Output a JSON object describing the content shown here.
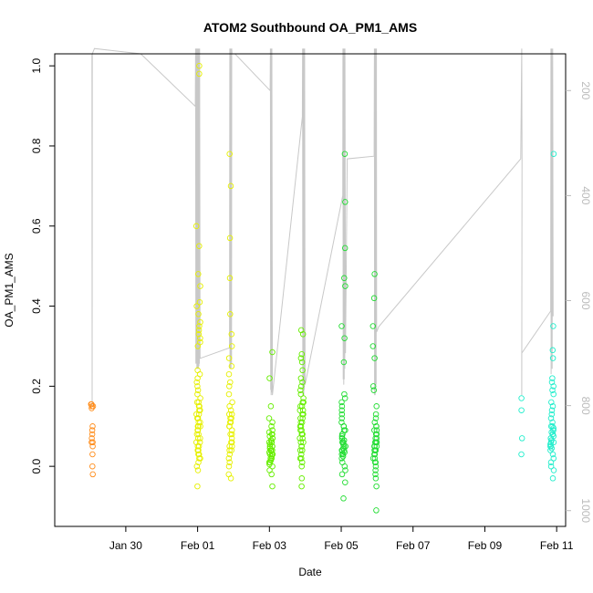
{
  "chart_data": {
    "type": "scatter",
    "title": "ATOM2 Southbound OA_PM1_AMS",
    "xlabel": "Date",
    "ylabel": "OA_PM1_AMS",
    "xlim": [
      "2017-01-28T00:30",
      "2017-02-11T06:00"
    ],
    "ylim": [
      -0.15,
      1.03
    ],
    "x_ticks": [
      {
        "date": "2017-01-30",
        "label": "Jan 30"
      },
      {
        "date": "2017-02-01",
        "label": "Feb 01"
      },
      {
        "date": "2017-02-03",
        "label": "Feb 03"
      },
      {
        "date": "2017-02-05",
        "label": "Feb 05"
      },
      {
        "date": "2017-02-07",
        "label": "Feb 07"
      },
      {
        "date": "2017-02-09",
        "label": "Feb 09"
      },
      {
        "date": "2017-02-11",
        "label": "Feb 11"
      }
    ],
    "y_ticks": [
      "0.0",
      "0.2",
      "0.4",
      "0.6",
      "0.8",
      "1.0"
    ],
    "y_right_ticks": [
      "200",
      "400",
      "600",
      "800",
      "1000"
    ],
    "y_right_reversed": true,
    "y_right_range": [
      1030,
      130
    ],
    "grid": false,
    "series": [
      {
        "color": "#ff8c1a",
        "clusters": [
          {
            "center": "2017-01-29T01:30",
            "spread_hours": 1.4,
            "values": [
              0.155,
              0.15,
              0.145,
              0.155,
              0.1,
              0.09,
              0.07,
              0.06,
              0.05,
              0.08,
              0.03,
              0.0,
              -0.02,
              0.06,
              0.15
            ]
          }
        ]
      },
      {
        "color": "#e6f000",
        "clusters": [
          {
            "center": "2017-02-01T00:30",
            "spread_hours": 3.0,
            "values": [
              0.98,
              1.0,
              0.6,
              0.55,
              0.48,
              0.45,
              0.41,
              0.4,
              0.38,
              0.36,
              0.35,
              0.34,
              0.33,
              0.32,
              0.31,
              0.3,
              0.24,
              0.23,
              0.22,
              0.21,
              0.2,
              0.19,
              0.18,
              0.17,
              0.16,
              0.15,
              0.14,
              0.13,
              0.12,
              0.11,
              0.1,
              0.09,
              0.08,
              0.07,
              0.06,
              0.05,
              0.04,
              0.03,
              0.02,
              0.01,
              0.0,
              -0.01,
              -0.05,
              0.1,
              0.12,
              0.09,
              0.08,
              0.15,
              0.16,
              0.11,
              0.07,
              0.06,
              0.05,
              0.13,
              0.04,
              0.03,
              0.02,
              0.1,
              0.12,
              0.14
            ]
          },
          {
            "center": "2017-02-01T22:00",
            "spread_hours": 2.4,
            "values": [
              0.78,
              0.7,
              0.57,
              0.47,
              0.38,
              0.33,
              0.3,
              0.27,
              0.25,
              0.23,
              0.21,
              0.2,
              0.18,
              0.16,
              0.15,
              0.14,
              0.13,
              0.12,
              0.11,
              0.1,
              0.09,
              0.08,
              0.07,
              0.06,
              0.05,
              0.04,
              0.03,
              0.02,
              0.01,
              0.0,
              -0.02,
              -0.03,
              0.1,
              0.12,
              0.08,
              0.06,
              0.05,
              0.13,
              0.04,
              0.11
            ]
          }
        ]
      },
      {
        "color": "#66ee00",
        "clusters": [
          {
            "center": "2017-02-03T01:00",
            "spread_hours": 2.4,
            "values": [
              0.285,
              0.22,
              0.15,
              0.12,
              0.11,
              0.1,
              0.09,
              0.085,
              0.08,
              0.075,
              0.07,
              0.065,
              0.06,
              0.055,
              0.05,
              0.045,
              0.04,
              0.035,
              0.03,
              0.025,
              0.02,
              0.015,
              0.01,
              0.005,
              0.0,
              -0.01,
              -0.02,
              -0.05,
              0.06,
              0.05,
              0.04,
              0.03,
              0.07,
              0.08,
              0.02,
              0.01,
              0.06,
              0.05,
              0.04,
              0.03
            ]
          },
          {
            "center": "2017-02-03T21:30",
            "spread_hours": 2.6,
            "values": [
              0.34,
              0.33,
              0.28,
              0.27,
              0.26,
              0.24,
              0.22,
              0.21,
              0.2,
              0.19,
              0.18,
              0.17,
              0.16,
              0.15,
              0.14,
              0.13,
              0.12,
              0.11,
              0.1,
              0.09,
              0.08,
              0.07,
              0.06,
              0.05,
              0.04,
              0.03,
              0.02,
              0.01,
              0.0,
              -0.03,
              -0.05,
              0.12,
              0.1,
              0.08,
              0.07,
              0.06,
              0.05,
              0.15,
              0.13,
              0.11,
              0.09,
              0.04,
              0.02,
              0.14,
              0.16
            ]
          }
        ]
      },
      {
        "color": "#22dd33",
        "clusters": [
          {
            "center": "2017-02-05T01:30",
            "spread_hours": 2.6,
            "values": [
              0.78,
              0.66,
              0.545,
              0.47,
              0.45,
              0.35,
              0.32,
              0.26,
              0.18,
              0.17,
              0.16,
              0.15,
              0.14,
              0.13,
              0.12,
              0.11,
              0.1,
              0.09,
              0.08,
              0.075,
              0.07,
              0.065,
              0.06,
              0.055,
              0.05,
              0.045,
              0.04,
              0.035,
              0.03,
              0.025,
              0.02,
              0.01,
              0.0,
              -0.01,
              -0.02,
              -0.04,
              -0.08,
              0.07,
              0.06,
              0.05,
              0.04,
              0.03,
              0.08,
              0.09,
              0.1,
              0.06,
              0.05,
              0.04
            ]
          },
          {
            "center": "2017-02-05T22:30",
            "spread_hours": 2.6,
            "values": [
              0.48,
              0.42,
              0.35,
              0.3,
              0.27,
              0.2,
              0.19,
              0.15,
              0.13,
              0.12,
              0.11,
              0.1,
              0.09,
              0.08,
              0.07,
              0.06,
              0.05,
              0.04,
              0.03,
              0.02,
              0.01,
              0.0,
              -0.01,
              -0.02,
              -0.03,
              -0.05,
              -0.11,
              0.06,
              0.05,
              0.04,
              0.07,
              0.08,
              0.03,
              0.02,
              0.09,
              0.1,
              0.01,
              0.04,
              0.05,
              0.06
            ]
          }
        ]
      },
      {
        "color": "#22eecc",
        "clusters": [
          {
            "center": "2017-02-10T00:40",
            "spread_hours": 0.6,
            "values": [
              0.17,
              0.14,
              0.07,
              0.03
            ]
          },
          {
            "center": "2017-02-10T21:00",
            "spread_hours": 2.4,
            "values": [
              0.78,
              0.35,
              0.29,
              0.27,
              0.22,
              0.21,
              0.2,
              0.19,
              0.18,
              0.16,
              0.15,
              0.14,
              0.13,
              0.12,
              0.11,
              0.1,
              0.095,
              0.09,
              0.085,
              0.08,
              0.075,
              0.07,
              0.065,
              0.06,
              0.055,
              0.05,
              0.045,
              0.04,
              0.03,
              0.02,
              0.01,
              0.0,
              -0.01,
              -0.03,
              0.06,
              0.07,
              0.08,
              0.05,
              0.09,
              0.1
            ]
          }
        ]
      }
    ],
    "overlay_line": {
      "color": "#c8c8c8",
      "axis": "right",
      "points": [
        [
          "2017-01-29T01:24",
          130
        ],
        [
          "2017-01-29T01:30",
          800
        ],
        [
          "2017-01-29T01:36",
          130
        ],
        [
          "2017-01-29T03:00",
          120
        ],
        [
          "2017-01-30T10:00",
          130
        ],
        [
          "2017-01-31T22:30",
          230
        ],
        [
          "2017-01-31T22:40",
          120
        ],
        [
          "2017-01-31T22:50",
          720
        ],
        [
          "2017-01-31T23:00",
          120
        ],
        [
          "2017-01-31T23:10",
          720
        ],
        [
          "2017-01-31T23:20",
          120
        ],
        [
          "2017-01-31T23:30",
          730
        ],
        [
          "2017-01-31T23:40",
          120
        ],
        [
          "2017-01-31T23:50",
          730
        ],
        [
          "2017-02-01T00:00",
          120
        ],
        [
          "2017-02-01T00:10",
          730
        ],
        [
          "2017-02-01T00:20",
          120
        ],
        [
          "2017-02-01T00:30",
          730
        ],
        [
          "2017-02-01T00:40",
          120
        ],
        [
          "2017-02-01T00:50",
          725
        ],
        [
          "2017-02-01T01:00",
          120
        ],
        [
          "2017-02-01T01:10",
          720
        ],
        [
          "2017-02-01T01:20",
          120
        ],
        [
          "2017-02-01T01:40",
          710
        ],
        [
          "2017-02-01T21:20",
          690
        ],
        [
          "2017-02-01T21:30",
          120
        ],
        [
          "2017-02-01T21:40",
          730
        ],
        [
          "2017-02-01T21:50",
          120
        ],
        [
          "2017-02-01T22:00",
          730
        ],
        [
          "2017-02-01T22:10",
          120
        ],
        [
          "2017-02-01T22:20",
          730
        ],
        [
          "2017-02-01T22:30",
          120
        ],
        [
          "2017-02-01T22:40",
          720
        ],
        [
          "2017-02-01T22:50",
          120
        ],
        [
          "2017-02-01T23:00",
          130
        ],
        [
          "2017-02-02T01:00",
          130
        ],
        [
          "2017-02-03T00:30",
          200
        ],
        [
          "2017-02-03T00:40",
          120
        ],
        [
          "2017-02-03T00:50",
          770
        ],
        [
          "2017-02-03T01:00",
          120
        ],
        [
          "2017-02-03T01:10",
          780
        ],
        [
          "2017-02-03T01:20",
          120
        ],
        [
          "2017-02-03T01:30",
          775
        ],
        [
          "2017-02-03T01:40",
          120
        ],
        [
          "2017-02-03T02:00",
          780
        ],
        [
          "2017-02-03T22:00",
          250
        ],
        [
          "2017-02-03T22:10",
          120
        ],
        [
          "2017-02-03T22:20",
          780
        ],
        [
          "2017-02-03T22:30",
          120
        ],
        [
          "2017-02-03T22:40",
          780
        ],
        [
          "2017-02-03T22:50",
          120
        ],
        [
          "2017-02-03T23:00",
          780
        ],
        [
          "2017-02-03T23:10",
          120
        ],
        [
          "2017-02-03T23:20",
          770
        ],
        [
          "2017-02-03T23:30",
          120
        ],
        [
          "2017-02-03T23:50",
          760
        ],
        [
          "2017-02-05T01:00",
          400
        ],
        [
          "2017-02-05T01:10",
          120
        ],
        [
          "2017-02-05T01:20",
          750
        ],
        [
          "2017-02-05T01:30",
          120
        ],
        [
          "2017-02-05T01:40",
          760
        ],
        [
          "2017-02-05T01:50",
          120
        ],
        [
          "2017-02-05T02:00",
          750
        ],
        [
          "2017-02-05T02:10",
          120
        ],
        [
          "2017-02-05T02:20",
          730
        ],
        [
          "2017-02-05T02:30",
          120
        ],
        [
          "2017-02-05T02:50",
          700
        ],
        [
          "2017-02-05T04:00",
          330
        ],
        [
          "2017-02-05T22:00",
          325
        ],
        [
          "2017-02-05T22:10",
          120
        ],
        [
          "2017-02-05T22:20",
          780
        ],
        [
          "2017-02-05T22:30",
          120
        ],
        [
          "2017-02-05T22:40",
          780
        ],
        [
          "2017-02-05T22:50",
          120
        ],
        [
          "2017-02-05T23:00",
          770
        ],
        [
          "2017-02-05T23:10",
          120
        ],
        [
          "2017-02-05T23:20",
          760
        ],
        [
          "2017-02-05T23:30",
          120
        ],
        [
          "2017-02-05T23:40",
          660
        ],
        [
          "2017-02-06T01:00",
          650
        ],
        [
          "2017-02-10T00:00",
          330
        ],
        [
          "2017-02-10T00:40",
          120
        ],
        [
          "2017-02-10T00:50",
          330
        ],
        [
          "2017-02-10T00:40",
          780
        ],
        [
          "2017-02-10T00:40",
          700
        ],
        [
          "2017-02-10T20:00",
          620
        ],
        [
          "2017-02-10T20:10",
          120
        ],
        [
          "2017-02-10T20:20",
          740
        ],
        [
          "2017-02-10T20:40",
          120
        ],
        [
          "2017-02-10T21:00",
          730
        ],
        [
          "2017-02-10T21:20",
          120
        ],
        [
          "2017-02-10T21:40",
          630
        ]
      ]
    }
  }
}
